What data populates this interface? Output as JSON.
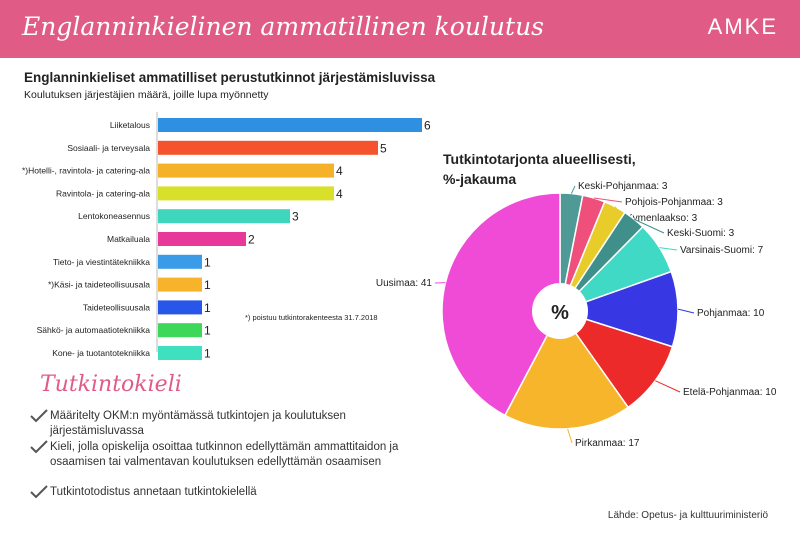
{
  "header": {
    "title": "Englanninkielinen ammatillinen koulutus",
    "brand": "AMKE"
  },
  "bar_section": {
    "title": "Englanninkieliset ammatilliset perustutkinnot järjestämisluvissa",
    "subtitle": "Koulutuksen järjestäjien määrä, joille lupa myönnetty",
    "footnote": "*) poistuu tutkintorakenteesta 31.7.2018"
  },
  "pie_section": {
    "title_line1": "Tutkintotarjonta alueellisesti,",
    "title_line2": "%-jakauma",
    "center_label": "%"
  },
  "checklist": {
    "title": "Tutkintokieli",
    "items": [
      "Määritelty OKM:n myöntämässä tutkintojen ja koulutuksen järjestämisluvassa",
      "Kieli, jolla opiskelija osoittaa tutkinnon edellyttämän ammattitaidon ja osaamisen tai valmentavan koulutuksen edellyttämän osaamisen",
      "Tutkintotodistus annetaan tutkintokielellä"
    ]
  },
  "source": "Lähde: Opetus- ja kulttuuriministeriö",
  "chart_data": [
    {
      "type": "bar",
      "orientation": "horizontal",
      "categories": [
        "Liiketalous",
        "Sosiaali- ja terveysala",
        "*)Hotelli-, ravintola- ja catering-ala",
        "Ravintola- ja catering-ala",
        "Lentokoneasennus",
        "Matkailuala",
        "Tieto- ja viestintätekniikka",
        "*)Käsi- ja taideteollisuusala",
        "Taideteollisuusala",
        "Sähkö- ja automaatiotekniikka",
        "Kone- ja tuotantotekniikka"
      ],
      "values": [
        6,
        5,
        4,
        4,
        3,
        2,
        1,
        1,
        1,
        1,
        1
      ],
      "colors": [
        "#2f8fe0",
        "#f4532d",
        "#f5b228",
        "#d9e02a",
        "#3ed6bd",
        "#e8389a",
        "#3a9be8",
        "#f7b32b",
        "#2856e8",
        "#3dd75a",
        "#3ee0c0"
      ],
      "xlim": [
        0,
        6
      ],
      "grid": false
    },
    {
      "type": "pie",
      "labels": [
        "Keski-Pohjanmaa: 3",
        "Pohjois-Pohjanmaa: 3",
        "Kymenlaakso: 3",
        "Keski-Suomi: 3",
        "Varsinais-Suomi: 7",
        "Pohjanmaa: 10",
        "Etelä-Pohjanmaa: 10",
        "Pirkanmaa: 17",
        "Uusimaa: 41"
      ],
      "values": [
        3,
        3,
        3,
        3,
        7,
        10,
        10,
        17,
        41
      ],
      "colors": [
        "#4f9a97",
        "#ee4f7b",
        "#e8cc2a",
        "#3f8f8a",
        "#3fd9c5",
        "#3737e3",
        "#ec2a2a",
        "#f7b52c",
        "#ef4bd6"
      ],
      "center_label": "%"
    }
  ]
}
